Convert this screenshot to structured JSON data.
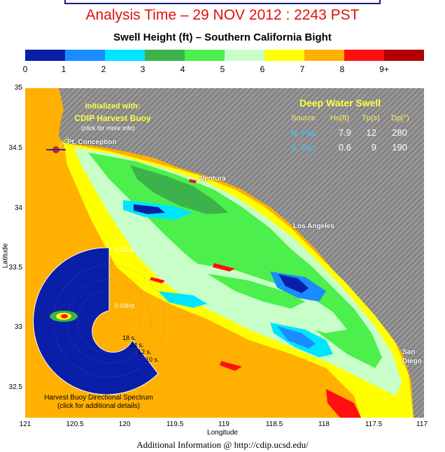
{
  "header": {
    "analysis_time": "Analysis Time –  29 NOV 2012 : 2243 PST",
    "subtitle": "Swell Height (ft) – Southern California Bight"
  },
  "colorbar": {
    "colors": [
      "#0a1fa8",
      "#1a8cff",
      "#00e5ff",
      "#3cb34a",
      "#4cef4c",
      "#c8ffc8",
      "#ffff00",
      "#ffb000",
      "#ff1010",
      "#b00000"
    ],
    "tick_labels": [
      "0",
      "1",
      "2",
      "3",
      "4",
      "5",
      "6",
      "7",
      "8",
      "9+"
    ]
  },
  "axes": {
    "xlabel": "Longitude",
    "ylabel": "Latitude",
    "x_ticks": [
      "121",
      "120.5",
      "120",
      "119.5",
      "119",
      "118.5",
      "118",
      "117.5",
      "117"
    ],
    "y_ticks": [
      "35",
      "34.5",
      "34",
      "33.5",
      "33",
      "32.5"
    ]
  },
  "places": {
    "pt_conception": "Pt. Conception",
    "ventura": "Ventura",
    "los_angeles": "Los Angeles",
    "san": "San",
    "diego": "Diego"
  },
  "buoy_note": {
    "line1": "Initialized with:",
    "line2": "CDIP Harvest Buoy",
    "line3": "(click for more info)"
  },
  "deep_water_swell": {
    "title": "Deep Water Swell",
    "headers": [
      "Source",
      "Hs(ft)",
      "Tp(s)",
      "Dp(°)"
    ],
    "rows": [
      {
        "source": "N. Pac",
        "hs": "7.9",
        "tp": "12",
        "dp": "280"
      },
      {
        "source": "S. Pac",
        "hs": "0.6",
        "tp": "9",
        "dp": "190"
      }
    ]
  },
  "spectrum": {
    "outer_freq": "0.12Hz",
    "inner_freq": "0.04Hz",
    "periods": [
      "18 s.",
      "14 s.",
      "12 s.",
      "10 s."
    ],
    "caption_line1": "Harvest Buoy Directional Spectrum",
    "caption_line2": "(click for additional details)"
  },
  "footer": "Additional Information @ http://cdip.ucsd.edu/",
  "colors": {
    "ocean_default": "#ffb000",
    "land": "#8c8c8c",
    "title_red": "#e01010"
  }
}
